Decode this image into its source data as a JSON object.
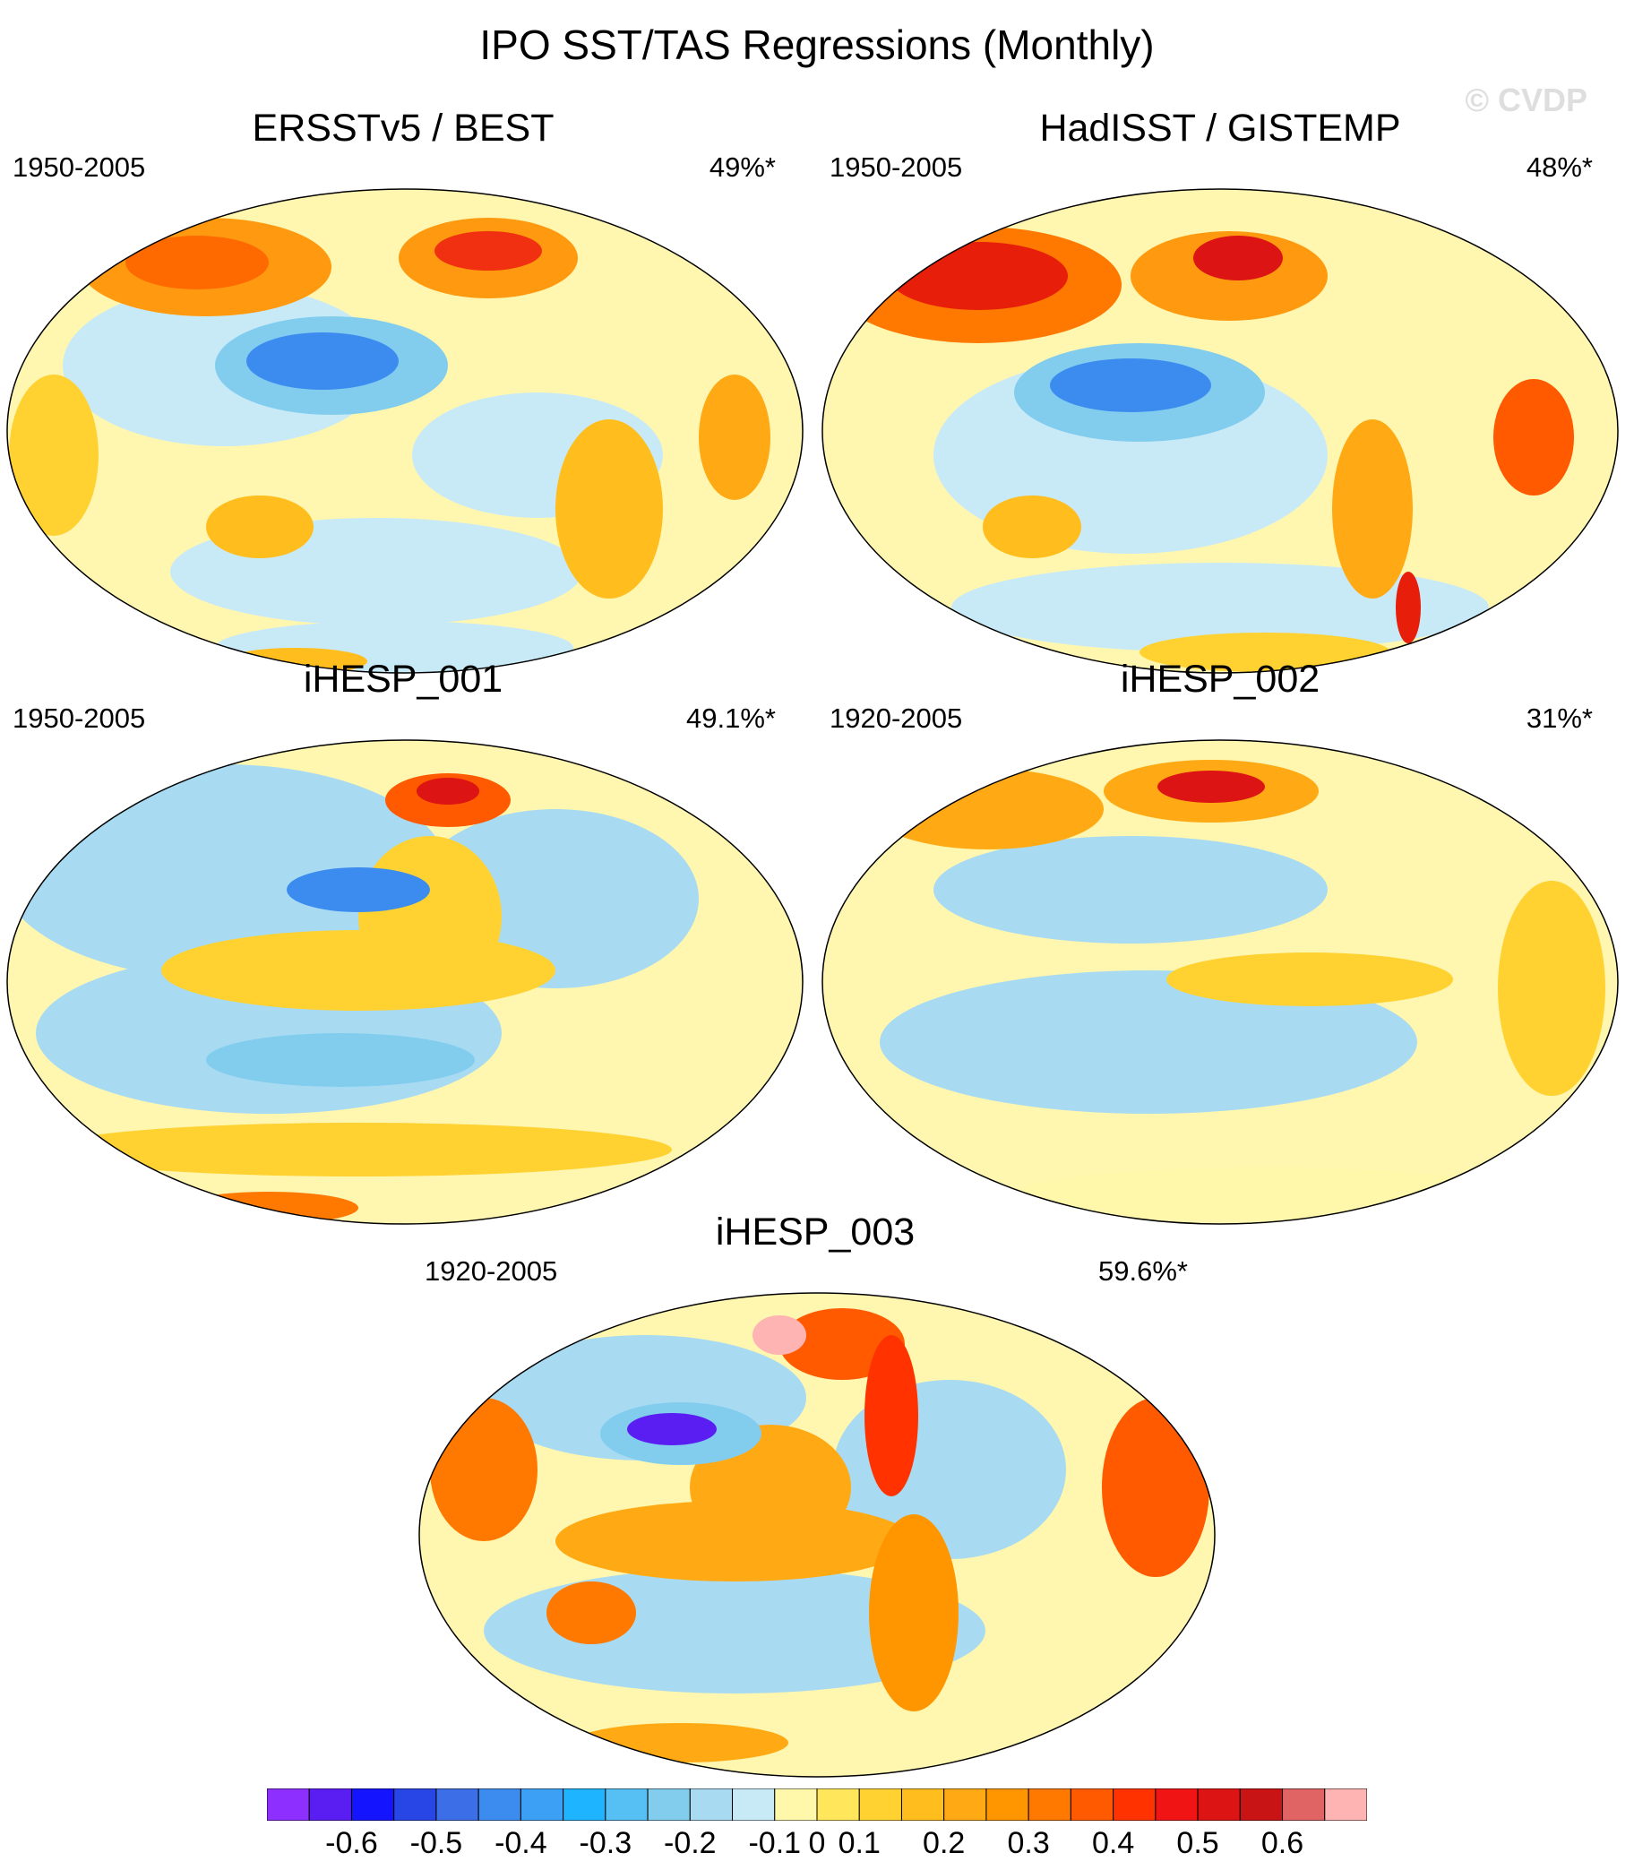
{
  "title": "IPO SST/TAS Regressions (Monthly)",
  "watermark": "© CVDP",
  "panels": [
    {
      "title": "ERSSTv5 / BEST",
      "period": "1950-2005",
      "variance": "49%*"
    },
    {
      "title": "HadISST / GISTEMP",
      "period": "1950-2005",
      "variance": "48%*"
    },
    {
      "title": "iHESP_001",
      "period": "1950-2005",
      "variance": "49.1%*"
    },
    {
      "title": "iHESP_002",
      "period": "1920-2005",
      "variance": "31%*"
    },
    {
      "title": "iHESP_003",
      "period": "1920-2005",
      "variance": "59.6%*"
    }
  ],
  "colorbar": {
    "colors": [
      "#8c2fff",
      "#5a1ef2",
      "#1414ff",
      "#2846e6",
      "#3c6ee8",
      "#3c8cf0",
      "#3ca0f5",
      "#1eb4ff",
      "#56c0f5",
      "#82cdee",
      "#a8dbf2",
      "#c8eaf7",
      "#fff8aa",
      "#ffe65a",
      "#ffd232",
      "#ffbe1e",
      "#ffaa14",
      "#ff9600",
      "#ff7800",
      "#ff5a00",
      "#ff3200",
      "#f01414",
      "#dc1414",
      "#c81414",
      "#e06464",
      "#ffb4b4"
    ],
    "labels": [
      "-0.6",
      "-0.5",
      "-0.4",
      "-0.3",
      "-0.2",
      "-0.1",
      "0",
      "0.1",
      "0.2",
      "0.3",
      "0.4",
      "0.5",
      "0.6"
    ],
    "label_boundary_index": [
      2,
      4,
      6,
      8,
      10,
      12,
      13,
      14,
      16,
      18,
      20,
      22,
      24
    ]
  }
}
